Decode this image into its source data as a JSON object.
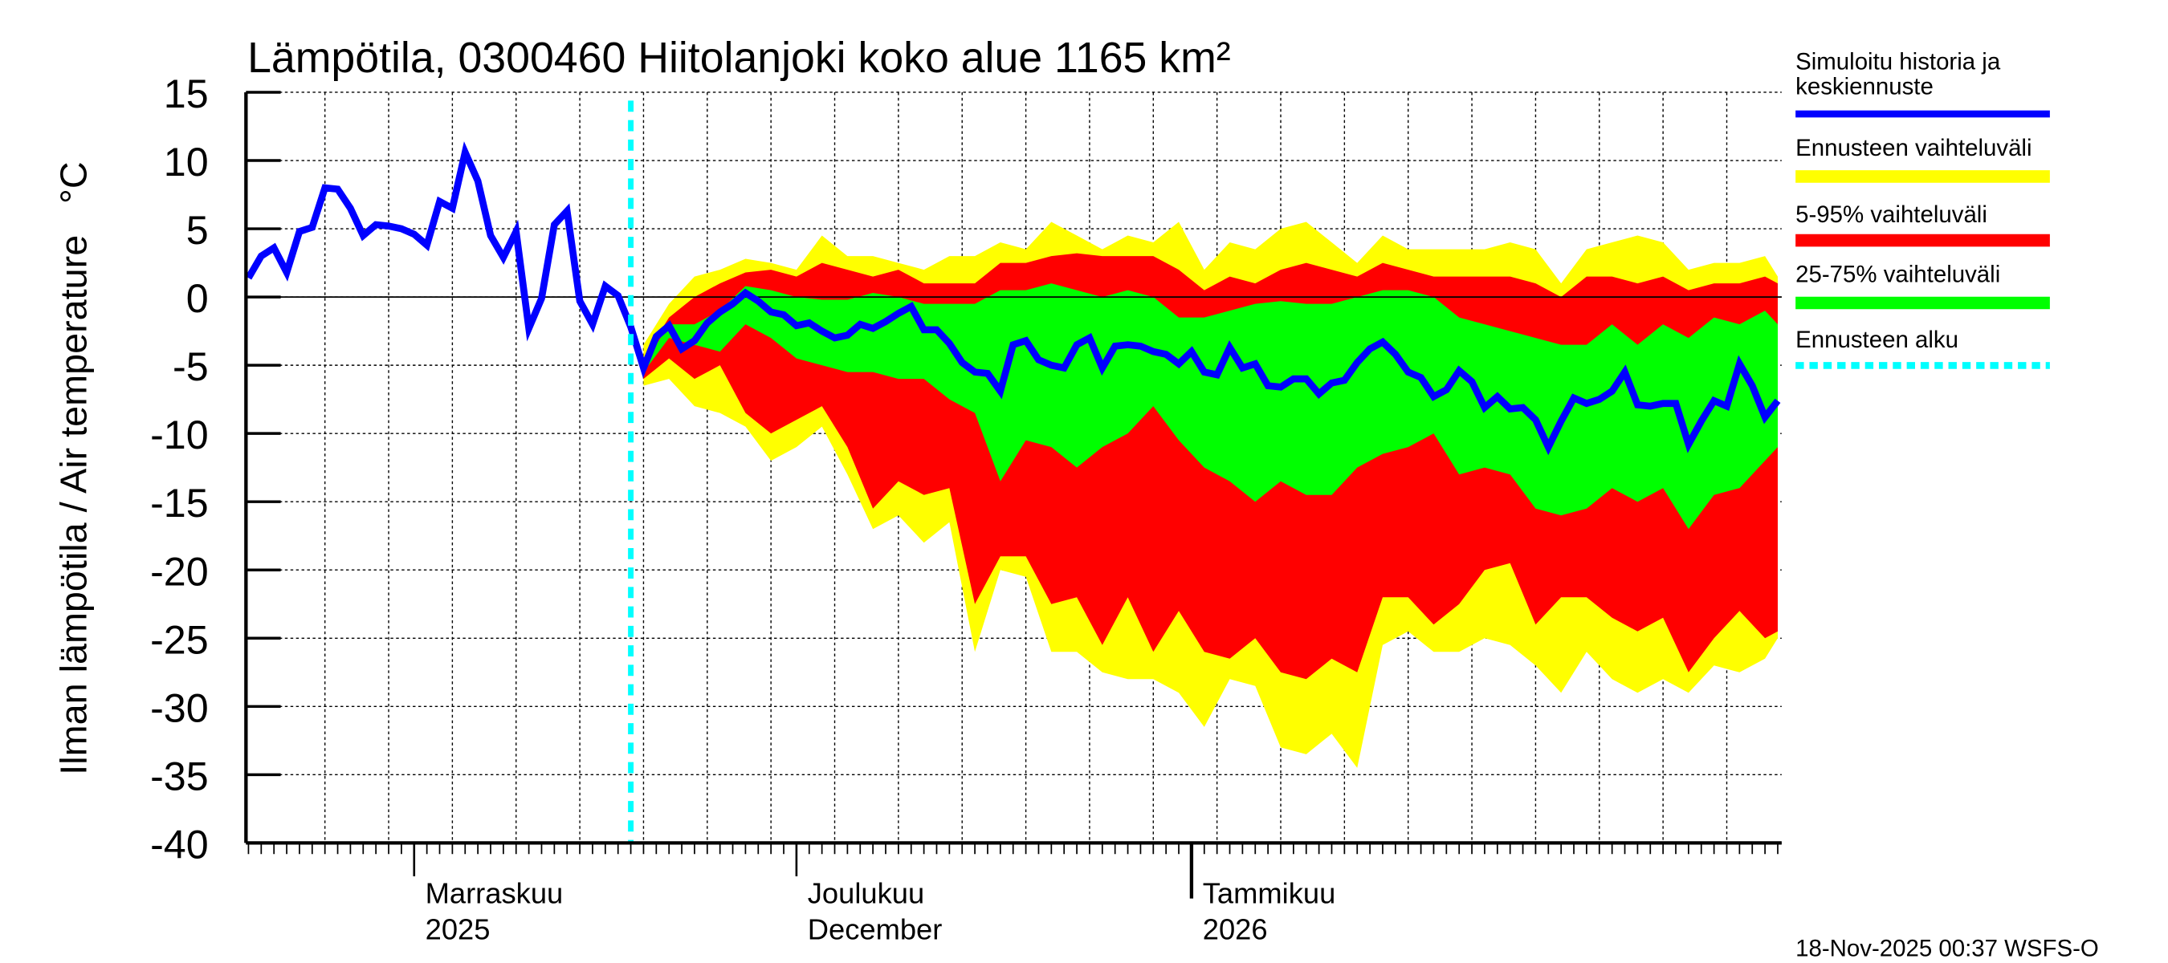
{
  "chart_data": {
    "type": "area",
    "title": "Lämpötila, 0300460 Hiitolanjoki koko alue 1165 km²",
    "ylabel": "Ilman lämpötila / Air temperature   °C",
    "ylim": [
      -40,
      15
    ],
    "yticks": [
      "15",
      "10",
      "5",
      "0",
      "-5",
      "-10",
      "-15",
      "-20",
      "-25",
      "-30",
      "-35",
      "-40"
    ],
    "xlim": [
      "2025-10-19",
      "2026-02-17"
    ],
    "grid": true,
    "legend_placement": "right",
    "month_labels": [
      {
        "date": "2025-11-01",
        "line1": "Marraskuu",
        "line2": "2025"
      },
      {
        "date": "2025-12-01",
        "line1": "Joulukuu",
        "line2": "December"
      },
      {
        "date": "2026-01-01",
        "line1": "Tammikuu",
        "line2": "2026"
      }
    ],
    "forecast_start": "2025-11-18",
    "timestamp": "18-Nov-2025 00:37 WSFS-O",
    "legend": [
      {
        "label": "Simuloitu historia ja keskiennuste",
        "color": "#0000ff",
        "style": "solid"
      },
      {
        "label": "Ennusteen vaihteluväli",
        "color": "#ffff00",
        "style": "solid"
      },
      {
        "label": "5-95% vaihteluväli",
        "color": "#ff0000",
        "style": "solid"
      },
      {
        "label": "25-75% vaihteluväli",
        "color": "#00ff00",
        "style": "solid"
      },
      {
        "label": "Ennusteen alku",
        "color": "#00ffff",
        "style": "dotted"
      }
    ],
    "mean_series": {
      "start": "2025-10-19",
      "values": [
        1.4,
        3.0,
        3.6,
        1.8,
        4.8,
        5.1,
        8.0,
        7.9,
        6.5,
        4.5,
        5.3,
        5.2,
        5.0,
        4.6,
        3.8,
        7.0,
        6.5,
        10.6,
        8.5,
        4.5,
        2.9,
        4.8,
        -2.3,
        -0.1,
        5.3,
        6.3,
        -0.3,
        -2.0,
        0.8,
        0.1,
        -2.2,
        -5.2,
        -2.9,
        -2.1,
        -3.8,
        -3.2,
        -1.9,
        -1.1,
        -0.5,
        0.3,
        -0.3,
        -1.1,
        -1.3,
        -2.1,
        -1.9,
        -2.5,
        -3.0,
        -2.8,
        -2.0,
        -2.3,
        -1.8,
        -1.2,
        -0.7,
        -2.4,
        -2.4,
        -3.4,
        -4.8,
        -5.5,
        -5.6,
        -6.9,
        -3.5,
        -3.2,
        -4.6,
        -5.0,
        -5.2,
        -3.5,
        -3.0,
        -5.2,
        -3.6,
        -3.5,
        -3.6,
        -4.0,
        -4.2,
        -4.9,
        -4.0,
        -5.5,
        -5.7,
        -3.7,
        -5.2,
        -4.9,
        -6.5,
        -6.6,
        -6.0,
        -6.0,
        -7.1,
        -6.3,
        -6.1,
        -4.8,
        -3.8,
        -3.3,
        -4.2,
        -5.5,
        -5.9,
        -7.3,
        -6.8,
        -5.4,
        -6.2,
        -8.1,
        -7.3,
        -8.2,
        -8.1,
        -9.0,
        -11.0,
        -9.1,
        -7.4,
        -7.8,
        -7.5,
        -6.9,
        -5.5,
        -7.9,
        -8.0,
        -7.8,
        -7.8,
        -10.8,
        -9.1,
        -7.6,
        -8.0,
        -4.9,
        -6.5,
        -8.8,
        -7.6
      ]
    },
    "bands": {
      "columns": [
        "date",
        "max",
        "p95",
        "p75",
        "p25",
        "p5",
        "min"
      ],
      "rows": [
        [
          "2025-11-19",
          -3.5,
          -4.5,
          -5.0,
          -5.5,
          -6.0,
          -6.5
        ],
        [
          "2025-11-21",
          -0.5,
          -1.5,
          -2.0,
          -3.0,
          -4.5,
          -6.0
        ],
        [
          "2025-11-23",
          1.5,
          0.0,
          -2.0,
          -3.5,
          -6.0,
          -8.0
        ],
        [
          "2025-11-25",
          2.0,
          1.0,
          -1.0,
          -4.0,
          -5.0,
          -8.5
        ],
        [
          "2025-11-27",
          2.8,
          1.8,
          0.8,
          -2.0,
          -8.5,
          -9.5
        ],
        [
          "2025-11-29",
          2.5,
          2.0,
          0.5,
          -3.0,
          -10.0,
          -12.0
        ],
        [
          "2025-12-01",
          2.0,
          1.5,
          0.0,
          -4.5,
          -9.0,
          -11.0
        ],
        [
          "2025-12-03",
          4.5,
          2.5,
          -0.2,
          -5.0,
          -8.0,
          -9.5
        ],
        [
          "2025-12-05",
          3.0,
          2.0,
          -0.2,
          -5.5,
          -11.0,
          -13.0
        ],
        [
          "2025-12-07",
          3.0,
          1.5,
          0.3,
          -5.5,
          -15.5,
          -17.0
        ],
        [
          "2025-12-09",
          2.5,
          2.0,
          0.0,
          -6.0,
          -13.5,
          -16.0
        ],
        [
          "2025-12-11",
          2.0,
          1.0,
          -0.5,
          -6.0,
          -14.5,
          -18.0
        ],
        [
          "2025-12-13",
          3.0,
          1.0,
          -0.5,
          -7.5,
          -14.0,
          -16.5
        ],
        [
          "2025-12-15",
          3.0,
          1.0,
          -0.5,
          -8.5,
          -22.5,
          -26.0
        ],
        [
          "2025-12-17",
          4.0,
          2.5,
          0.5,
          -13.5,
          -19.0,
          -20.0
        ],
        [
          "2025-12-19",
          3.5,
          2.5,
          0.5,
          -10.5,
          -19.0,
          -20.5
        ],
        [
          "2025-12-21",
          5.5,
          3.0,
          1.0,
          -11.0,
          -22.5,
          -26.0
        ],
        [
          "2025-12-23",
          4.5,
          3.2,
          0.5,
          -12.5,
          -22.0,
          -26.0
        ],
        [
          "2025-12-25",
          3.5,
          3.0,
          0.0,
          -11.0,
          -25.5,
          -27.5
        ],
        [
          "2025-12-27",
          4.5,
          3.0,
          0.5,
          -10.0,
          -22.0,
          -28.0
        ],
        [
          "2025-12-29",
          4.0,
          3.0,
          0.0,
          -8.0,
          -26.0,
          -28.0
        ],
        [
          "2025-12-31",
          5.5,
          2.0,
          -1.5,
          -10.5,
          -23.0,
          -29.0
        ],
        [
          "2026-01-02",
          2.0,
          0.5,
          -1.5,
          -12.5,
          -26.0,
          -31.5
        ],
        [
          "2026-01-04",
          4.0,
          1.5,
          -1.0,
          -13.5,
          -26.5,
          -28.0
        ],
        [
          "2026-01-06",
          3.5,
          1.0,
          -0.5,
          -15.0,
          -25.0,
          -28.5
        ],
        [
          "2026-01-08",
          5.0,
          2.0,
          -0.3,
          -13.5,
          -27.5,
          -33.0
        ],
        [
          "2026-01-10",
          5.5,
          2.5,
          -0.5,
          -14.5,
          -28.0,
          -33.5
        ],
        [
          "2026-01-12",
          4.0,
          2.0,
          -0.5,
          -14.5,
          -26.5,
          -32.0
        ],
        [
          "2026-01-14",
          2.5,
          1.5,
          0.0,
          -12.5,
          -27.5,
          -34.5
        ],
        [
          "2026-01-16",
          4.5,
          2.5,
          0.5,
          -11.5,
          -22.0,
          -25.5
        ],
        [
          "2026-01-18",
          3.5,
          2.0,
          0.5,
          -11.0,
          -22.0,
          -24.5
        ],
        [
          "2026-01-20",
          3.5,
          1.5,
          0.0,
          -10.0,
          -24.0,
          -26.0
        ],
        [
          "2026-01-22",
          3.5,
          1.5,
          -1.5,
          -13.0,
          -22.5,
          -26.0
        ],
        [
          "2026-01-24",
          3.5,
          1.5,
          -2.0,
          -12.5,
          -20.0,
          -25.0
        ],
        [
          "2026-01-26",
          4.0,
          1.5,
          -2.5,
          -13.0,
          -19.5,
          -25.5
        ],
        [
          "2026-01-28",
          3.5,
          1.0,
          -3.0,
          -15.5,
          -24.0,
          -27.0
        ],
        [
          "2026-01-30",
          1.0,
          0.0,
          -3.5,
          -16.0,
          -22.0,
          -29.0
        ],
        [
          "2026-02-01",
          3.5,
          1.5,
          -3.5,
          -15.5,
          -22.0,
          -26.0
        ],
        [
          "2026-02-03",
          4.0,
          1.5,
          -2.0,
          -14.0,
          -23.5,
          -28.0
        ],
        [
          "2026-02-05",
          4.5,
          1.0,
          -3.5,
          -15.0,
          -24.5,
          -29.0
        ],
        [
          "2026-02-07",
          4.0,
          1.5,
          -2.0,
          -14.0,
          -23.5,
          -28.0
        ],
        [
          "2026-02-09",
          2.0,
          0.5,
          -3.0,
          -17.0,
          -27.5,
          -29.0
        ],
        [
          "2026-02-11",
          2.5,
          1.0,
          -1.5,
          -14.5,
          -25.0,
          -27.0
        ],
        [
          "2026-02-13",
          2.5,
          1.0,
          -2.0,
          -14.0,
          -23.0,
          -27.5
        ],
        [
          "2026-02-15",
          3.0,
          1.5,
          -1.0,
          -12.0,
          -25.0,
          -26.5
        ],
        [
          "2026-02-16",
          1.5,
          1.0,
          -2.0,
          -11.0,
          -24.5,
          -25.0
        ]
      ]
    }
  }
}
